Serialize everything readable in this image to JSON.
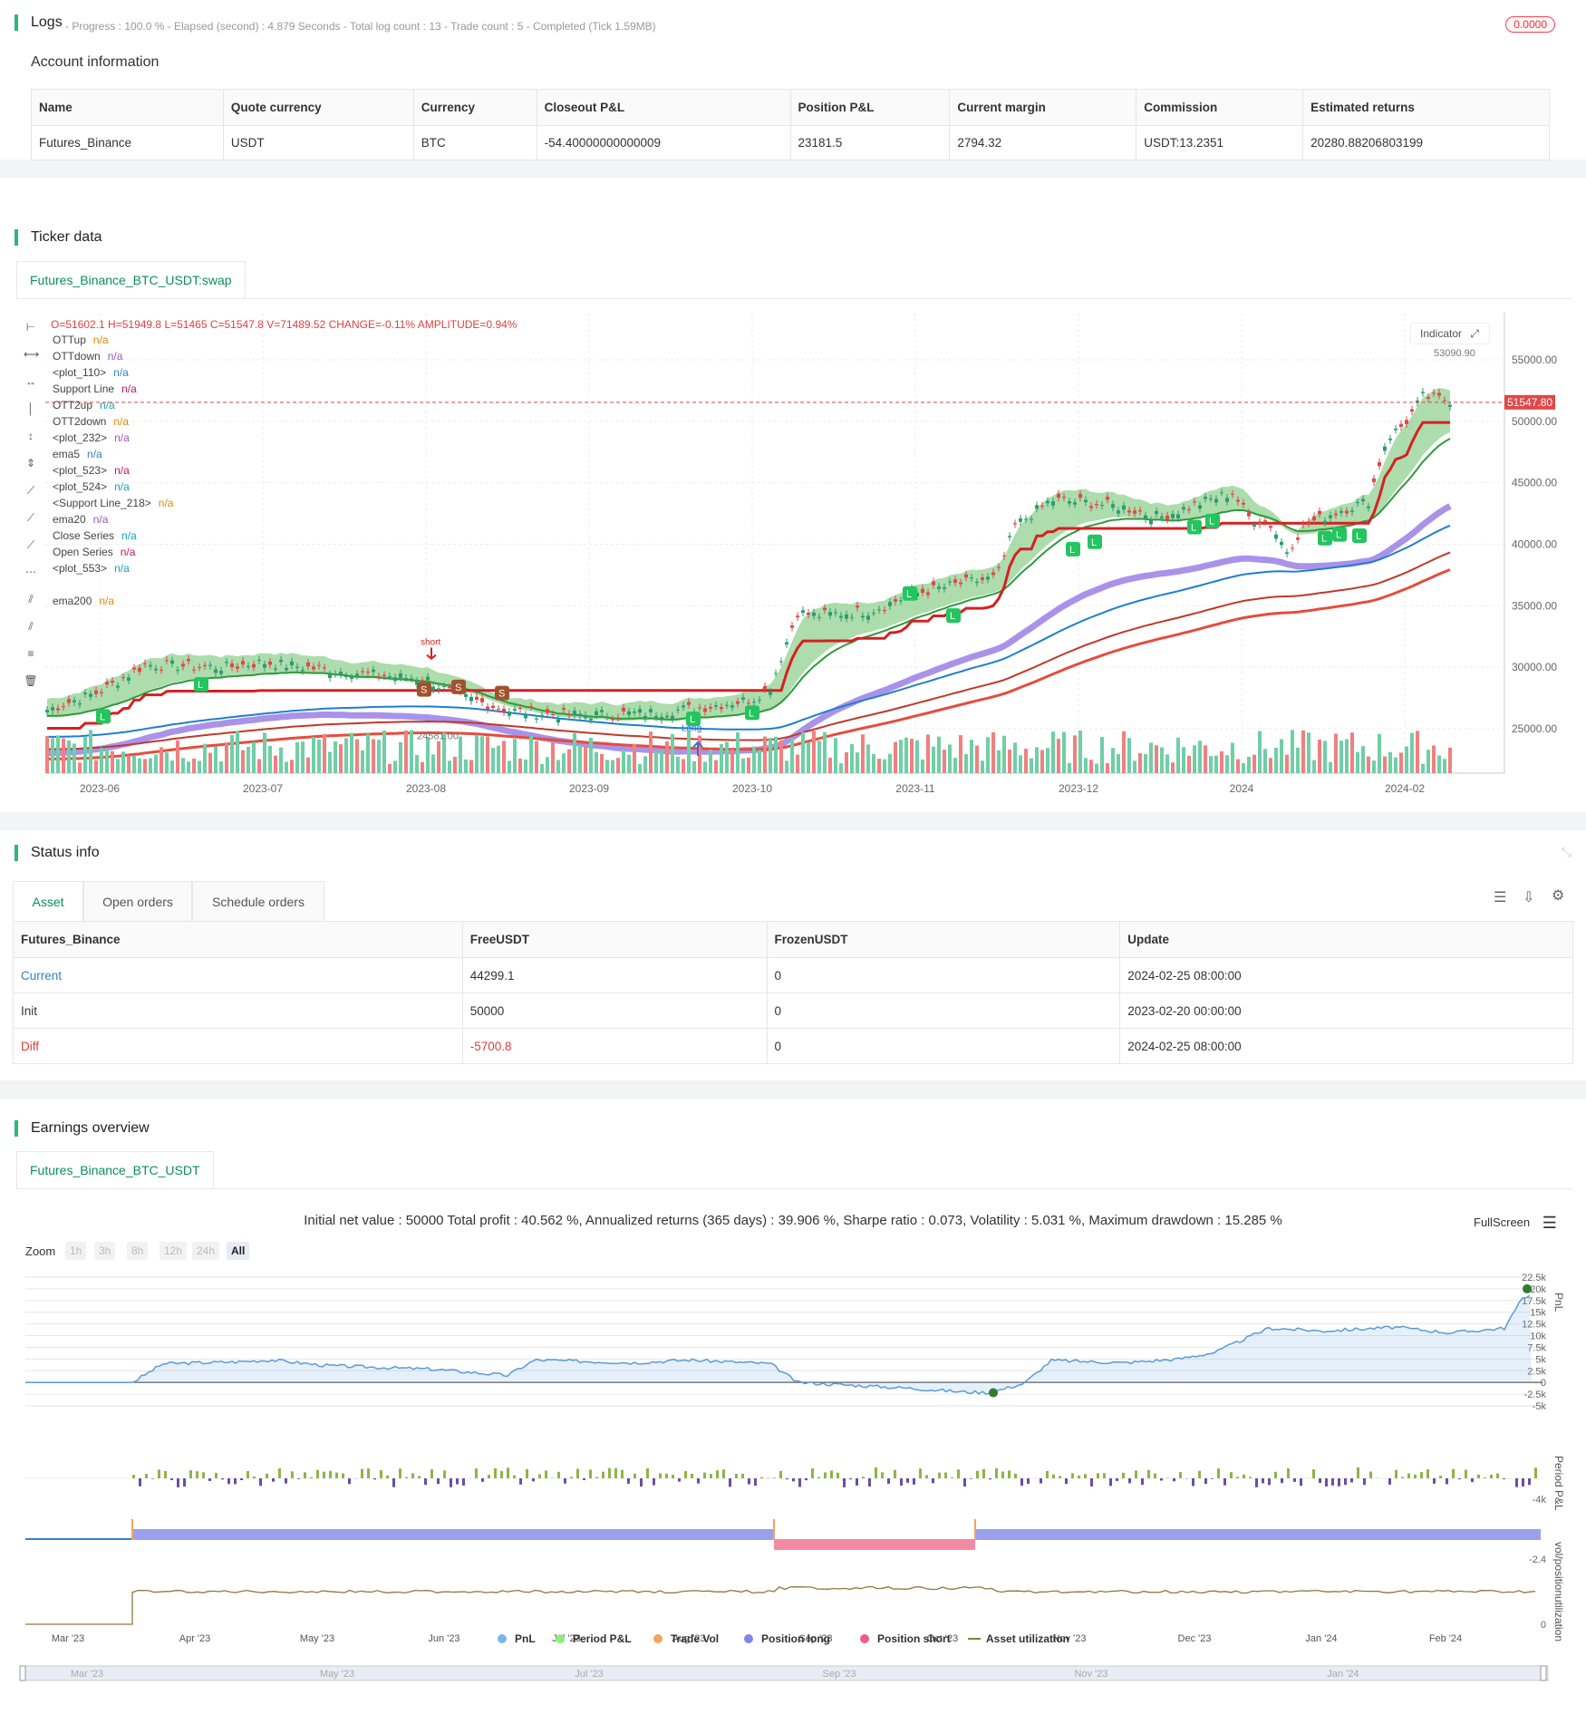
{
  "logs": {
    "title": "Logs",
    "meta": "- Progress : 100.0 % - Elapsed (second) : 4.879 Seconds - Total log count : 13 - Trade count : 5 - Completed (Tick 1.59MB)",
    "badge": "0.0000",
    "account_heading": "Account information",
    "columns": [
      "Name",
      "Quote currency",
      "Currency",
      "Closeout P&L",
      "Position P&L",
      "Current margin",
      "Commission",
      "Estimated returns"
    ],
    "row": [
      "Futures_Binance",
      "USDT",
      "BTC",
      "-54.40000000000009",
      "23181.5",
      "2794.32",
      "USDT:13.2351",
      "20280.88206803199"
    ]
  },
  "ticker": {
    "title": "Ticker data",
    "tab": "Futures_Binance_BTC_USDT:swap",
    "ohlc": "O=51602.1 H=51949.8 L=51465 C=51547.8 V=71489.52 CHANGE=-0.11% AMPLITUDE=0.94%",
    "indicator_btn": "Indicator",
    "legend": [
      {
        "name": "OTTup",
        "value": "n/a",
        "color": "#e08a00"
      },
      {
        "name": "OTTdown",
        "value": "n/a",
        "color": "#9b59b6"
      },
      {
        "name": "<plot_110>",
        "value": "n/a",
        "color": "#2e86c1"
      },
      {
        "name": "Support Line",
        "value": "n/a",
        "color": "#c2185b"
      },
      {
        "name": "OTT2up",
        "value": "n/a",
        "color": "#17a2b8"
      },
      {
        "name": "OTT2down",
        "value": "n/a",
        "color": "#e08a00"
      },
      {
        "name": "<plot_232>",
        "value": "n/a",
        "color": "#9b59b6"
      },
      {
        "name": "ema5",
        "value": "n/a",
        "color": "#2e86c1"
      },
      {
        "name": "<plot_523>",
        "value": "n/a",
        "color": "#c2185b"
      },
      {
        "name": "<plot_524>",
        "value": "n/a",
        "color": "#17a2b8"
      },
      {
        "name": "<Support Line_218>",
        "value": "n/a",
        "color": "#e08a00"
      },
      {
        "name": "ema20",
        "value": "n/a",
        "color": "#9b59b6"
      },
      {
        "name": "Close Series",
        "value": "n/a",
        "color": "#17a2b8"
      },
      {
        "name": "Open Series",
        "value": "n/a",
        "color": "#c2185b"
      },
      {
        "name": "<plot_553>",
        "value": "n/a",
        "color": "#17a2b8"
      },
      {
        "name": "ema200",
        "value": "n/a",
        "color": "#e08a00"
      }
    ],
    "y_ticks": [
      "55000.00",
      "50000.00",
      "45000.00",
      "40000.00",
      "35000.00",
      "30000.00",
      "25000.00"
    ],
    "x_ticks": [
      "2023-06",
      "2023-07",
      "2023-08",
      "2023-09",
      "2023-10",
      "2023-11",
      "2023-12",
      "2024",
      "2024-02"
    ],
    "last_price": "51547.80",
    "high_label": "53090.90",
    "low_label": "24581.00",
    "short_label": "short",
    "long_label": "Long"
  },
  "status": {
    "title": "Status info",
    "tabs": [
      "Asset",
      "Open orders",
      "Schedule orders"
    ],
    "columns": [
      "Futures_Binance",
      "FreeUSDT",
      "FrozenUSDT",
      "Update"
    ],
    "rows": [
      [
        "Current",
        "44299.1",
        "0",
        "2024-02-25 08:00:00"
      ],
      [
        "Init",
        "50000",
        "0",
        "2023-02-20 00:00:00"
      ],
      [
        "Diff",
        "-5700.8",
        "0",
        "2024-02-25 08:00:00"
      ]
    ]
  },
  "earnings": {
    "title": "Earnings overview",
    "tab": "Futures_Binance_BTC_USDT",
    "summary": "Initial net value : 50000 Total profit : 40.562 %, Annualized returns (365 days) : 39.906 %, Sharpe ratio : 0.073, Volatility : 5.031 %, Maximum drawdown : 15.285 %",
    "fullscreen": "FullScreen",
    "zoom_label": "Zoom",
    "zoom_buttons": [
      "1h",
      "3h",
      "8h",
      "12h",
      "24h",
      "All"
    ],
    "pnl_ticks": [
      "22.5k",
      "20k",
      "17.5k",
      "15k",
      "12.5k",
      "10k",
      "7.5k",
      "5k",
      "2.5k",
      "0",
      "-2.5k",
      "-5k"
    ],
    "period_tick": "-4k",
    "pos_tick": "-2.4",
    "util_tick": "0",
    "axis_titles": [
      "PnL",
      "Period P&L",
      "vol/position",
      "utilization"
    ],
    "x_ticks": [
      "Mar '23",
      "Apr '23",
      "May '23",
      "Jun '23",
      "Jul '23",
      "Aug '23",
      "Sep '23",
      "Oct '23",
      "Nov '23",
      "Dec '23",
      "Jan '24",
      "Feb '24"
    ],
    "nav_ticks": [
      "Mar '23",
      "May '23",
      "Jul '23",
      "Sep '23",
      "Nov '23",
      "Jan '24"
    ],
    "legend": [
      {
        "name": "PnL",
        "color": "#7cb5ec"
      },
      {
        "name": "Period P&L",
        "color": "#90ed7d"
      },
      {
        "name": "Trade Vol",
        "color": "#f7a35c"
      },
      {
        "name": "Position long",
        "color": "#8085e9"
      },
      {
        "name": "Position short",
        "color": "#f15c80"
      },
      {
        "name": "Asset utilization",
        "color": "#8d7a3c"
      }
    ]
  }
}
